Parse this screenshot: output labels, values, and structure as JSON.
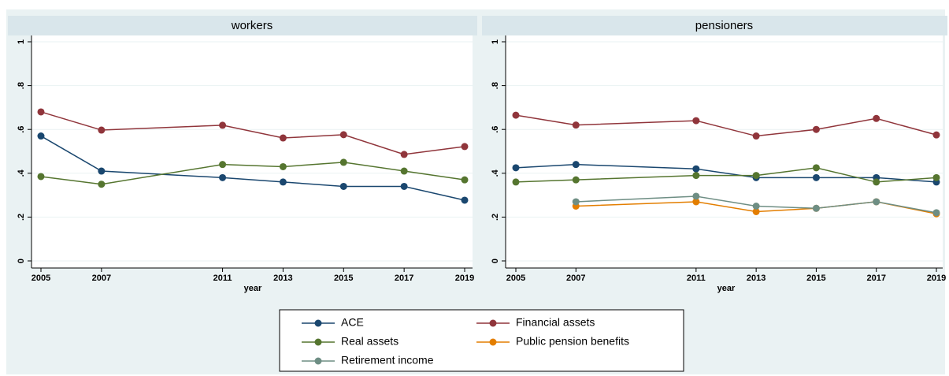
{
  "chart_data": [
    {
      "type": "line",
      "title": "workers",
      "x_label": "year",
      "x": [
        2005,
        2007,
        2011,
        2013,
        2015,
        2017,
        2019
      ],
      "xlim": [
        2005,
        2019
      ],
      "xticks": [
        2005,
        2007,
        2011,
        2013,
        2015,
        2017,
        2019
      ],
      "ylim": [
        0,
        1
      ],
      "yticks": [
        0,
        {
          "value": 0.2,
          "label": ".2"
        },
        {
          "value": 0.4,
          "label": ".4"
        },
        {
          "value": 0.6,
          "label": ".6"
        },
        {
          "value": 0.8,
          "label": ".8"
        },
        1
      ],
      "grid": true,
      "series": [
        {
          "name": "ACE",
          "color": "#1a476f",
          "values": [
            0.57,
            0.41,
            0.38,
            0.36,
            0.34,
            0.34,
            0.277
          ]
        },
        {
          "name": "Financial assets",
          "color": "#90353b",
          "values": [
            0.68,
            0.597,
            0.619,
            0.561,
            0.576,
            0.486,
            0.522
          ]
        },
        {
          "name": "Real assets",
          "color": "#55752f",
          "values": [
            0.385,
            0.35,
            0.44,
            0.43,
            0.45,
            0.41,
            0.37
          ]
        }
      ]
    },
    {
      "type": "line",
      "title": "pensioners",
      "x_label": "year",
      "x": [
        2005,
        2007,
        2011,
        2013,
        2015,
        2017,
        2019
      ],
      "xlim": [
        2005,
        2019
      ],
      "xticks": [
        2005,
        2007,
        2011,
        2013,
        2015,
        2017,
        2019
      ],
      "ylim": [
        0,
        1
      ],
      "yticks": [
        0,
        {
          "value": 0.2,
          "label": ".2"
        },
        {
          "value": 0.4,
          "label": ".4"
        },
        {
          "value": 0.6,
          "label": ".6"
        },
        {
          "value": 0.8,
          "label": ".8"
        },
        1
      ],
      "grid": true,
      "series": [
        {
          "name": "ACE",
          "color": "#1a476f",
          "values": [
            0.425,
            0.44,
            0.42,
            0.38,
            0.38,
            0.38,
            0.36
          ]
        },
        {
          "name": "Financial assets",
          "color": "#90353b",
          "values": [
            0.665,
            0.62,
            0.64,
            0.57,
            0.6,
            0.65,
            0.575
          ]
        },
        {
          "name": "Real assets",
          "color": "#55752f",
          "values": [
            0.36,
            0.37,
            0.39,
            0.39,
            0.425,
            0.36,
            0.38
          ]
        },
        {
          "name": "Public pension benefits",
          "color": "#e37e00",
          "values": [
            null,
            0.25,
            0.27,
            0.225,
            0.24,
            0.27,
            0.215
          ]
        },
        {
          "name": "Retirement income",
          "color": "#6e8e84",
          "values": [
            null,
            0.27,
            0.295,
            0.25,
            0.24,
            0.27,
            0.22
          ]
        }
      ]
    }
  ]
}
